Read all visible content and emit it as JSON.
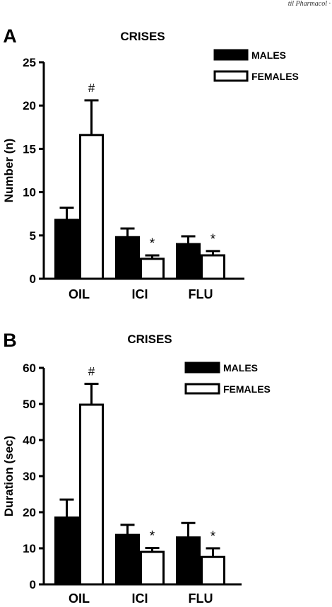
{
  "header_text": "til Pharmacol ·",
  "chart_data": [
    {
      "panel_label": "A",
      "type": "bar",
      "title": "CRISES",
      "xlabel": "",
      "ylabel": "Number (n)",
      "ylim": [
        0,
        25
      ],
      "yticks": [
        0,
        5,
        10,
        15,
        20,
        25
      ],
      "categories": [
        "OIL",
        "ICI",
        "FLU"
      ],
      "series": [
        {
          "name": "MALES",
          "fill": "#000000",
          "values": [
            6.8,
            4.8,
            4.0
          ],
          "errors": [
            1.4,
            1.0,
            0.9
          ]
        },
        {
          "name": "FEMALES",
          "fill": "#ffffff",
          "values": [
            16.6,
            2.3,
            2.7
          ],
          "errors": [
            4.0,
            0.4,
            0.5
          ]
        }
      ],
      "annotations": [
        {
          "series": 1,
          "category": 0,
          "text": "#"
        },
        {
          "series": 1,
          "category": 1,
          "text": "*"
        },
        {
          "series": 1,
          "category": 2,
          "text": "*"
        }
      ],
      "legend": "top-right",
      "grid": false
    },
    {
      "panel_label": "B",
      "type": "bar",
      "title": "CRISES",
      "xlabel": "",
      "ylabel": "Duration (sec)",
      "ylim": [
        0,
        60
      ],
      "yticks": [
        0,
        10,
        20,
        30,
        40,
        50,
        60
      ],
      "categories": [
        "OIL",
        "ICI",
        "FLU"
      ],
      "series": [
        {
          "name": "MALES",
          "fill": "#000000",
          "values": [
            18.5,
            13.7,
            13.0
          ],
          "errors": [
            5.0,
            2.8,
            4.0
          ]
        },
        {
          "name": "FEMALES",
          "fill": "#ffffff",
          "values": [
            49.8,
            9.0,
            7.6
          ],
          "errors": [
            5.8,
            1.1,
            2.4
          ]
        }
      ],
      "annotations": [
        {
          "series": 1,
          "category": 0,
          "text": "#"
        },
        {
          "series": 1,
          "category": 1,
          "text": "*"
        },
        {
          "series": 1,
          "category": 2,
          "text": "*"
        }
      ],
      "legend": "top-right",
      "grid": false
    }
  ]
}
